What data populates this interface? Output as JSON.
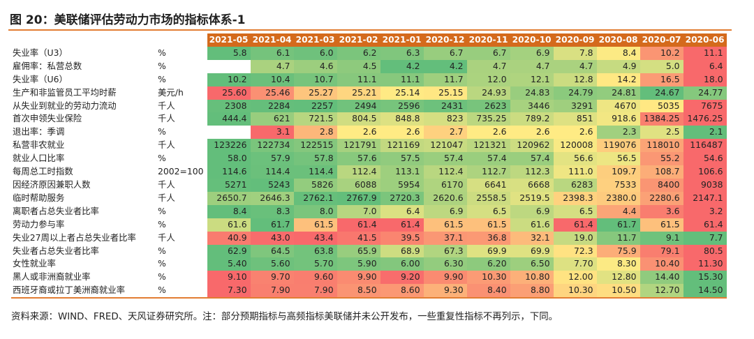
{
  "title": "图 20：美联储评估劳动力市场的指标体系-1",
  "source": "资料来源：WIND、FRED、天风证券研究所。注：部分预期指标与高频指标美联储并未公开发布，一些重复性指标不再列示，下同。",
  "colors": {
    "header_bg": "#d46a1c",
    "rule": "#e27d32",
    "scale_low": "#f8696b",
    "scale_mid": "#ffeb84",
    "scale_high": "#63be7b"
  },
  "table": {
    "columns": [
      "2021-05",
      "2021-04",
      "2021-03",
      "2021-02",
      "2021-01",
      "2020-12",
      "2020-11",
      "2020-10",
      "2020-09",
      "2020-08",
      "2020-07",
      "2020-06"
    ],
    "rows": [
      {
        "name": "失业率（U3）",
        "unit": "%",
        "values": [
          "5.8",
          "6.1",
          "6.0",
          "6.2",
          "6.3",
          "6.7",
          "6.7",
          "6.9",
          "7.8",
          "8.4",
          "10.2",
          "11.1"
        ],
        "good": "low"
      },
      {
        "name": "雇佣率：私营总数",
        "unit": "%",
        "values": [
          "",
          "4.7",
          "4.6",
          "4.5",
          "4.2",
          "4.2",
          "4.7",
          "4.7",
          "4.7",
          "4.9",
          "5.0",
          "6.4"
        ],
        "good": "low"
      },
      {
        "name": "失业率（U6）",
        "unit": "%",
        "values": [
          "10.2",
          "10.4",
          "10.7",
          "11.1",
          "11.1",
          "11.7",
          "12.0",
          "12.1",
          "12.8",
          "14.2",
          "16.5",
          "18.0"
        ],
        "good": "low"
      },
      {
        "name": "生产和非监管员工平均时薪",
        "unit": "美元/h",
        "values": [
          "25.60",
          "25.46",
          "25.27",
          "25.21",
          "25.14",
          "25.15",
          "24.93",
          "24.83",
          "24.79",
          "24.81",
          "24.67",
          "24.77"
        ],
        "good": "low"
      },
      {
        "name": "从失业到就业的劳动力流动",
        "unit": "千人",
        "values": [
          "2308",
          "2284",
          "2257",
          "2494",
          "2596",
          "2431",
          "2623",
          "3446",
          "3291",
          "4670",
          "5035",
          "7675"
        ],
        "good": "low"
      },
      {
        "name": "首次申领失业保险",
        "unit": "千人",
        "values": [
          "444.4",
          "621",
          "721.5",
          "804.5",
          "848.8",
          "823",
          "735.25",
          "789.2",
          "851",
          "918.6",
          "1384.25",
          "1476.25"
        ],
        "good": "low"
      },
      {
        "name": "退出率：季调",
        "unit": "%",
        "values": [
          "",
          "3.1",
          "2.8",
          "2.6",
          "2.6",
          "2.7",
          "2.6",
          "2.6",
          "2.6",
          "2.3",
          "2.5",
          "2.1"
        ],
        "good": "low"
      },
      {
        "name": "私营非农就业",
        "unit": "千人",
        "values": [
          "123226",
          "122734",
          "122515",
          "121791",
          "121169",
          "121047",
          "121321",
          "120962",
          "120008",
          "119076",
          "118010",
          "116487"
        ],
        "good": "high"
      },
      {
        "name": "就业人口比率",
        "unit": "%",
        "values": [
          "58.0",
          "57.9",
          "57.8",
          "57.6",
          "57.5",
          "57.4",
          "57.4",
          "57.4",
          "56.6",
          "56.5",
          "55.2",
          "54.6"
        ],
        "good": "high"
      },
      {
        "name": "每周总工时指数",
        "unit": "2002=100",
        "values": [
          "114.6",
          "114.4",
          "114.4",
          "112.4",
          "113.1",
          "112.4",
          "112.7",
          "112.3",
          "111.0",
          "109.7",
          "108.7",
          "106.6"
        ],
        "good": "high"
      },
      {
        "name": "因经济原因兼职人数",
        "unit": "千人",
        "values": [
          "5271",
          "5243",
          "5826",
          "6088",
          "5954",
          "6170",
          "6641",
          "6668",
          "6283",
          "7533",
          "8400",
          "9038"
        ],
        "good": "low"
      },
      {
        "name": "临时帮助服务",
        "unit": "千人",
        "values": [
          "2650.7",
          "2646.3",
          "2762.1",
          "2767.9",
          "2720.3",
          "2620.6",
          "2558.5",
          "2519.5",
          "2398.3",
          "2380.0",
          "2280.6",
          "2147.1"
        ],
        "good": "high"
      },
      {
        "name": "离职者占总失业者比率",
        "unit": "%",
        "values": [
          "8.4",
          "8.3",
          "8.0",
          "7.0",
          "6.4",
          "6.9",
          "6.5",
          "6.9",
          "6.5",
          "4.4",
          "3.6",
          "3.2"
        ],
        "good": "high"
      },
      {
        "name": "劳动力参与率",
        "unit": "%",
        "values": [
          "61.6",
          "61.7",
          "61.5",
          "61.4",
          "61.4",
          "61.5",
          "61.5",
          "61.6",
          "61.4",
          "61.7",
          "61.5",
          "61.4"
        ],
        "good": "high"
      },
      {
        "name": "失业27周以上者占总失业者比率",
        "unit": "千人",
        "values": [
          "40.9",
          "43.0",
          "43.4",
          "41.5",
          "39.5",
          "37.1",
          "36.8",
          "32.1",
          "19.0",
          "11.7",
          "9.1",
          "7.7"
        ],
        "good": "low"
      },
      {
        "name": "失业者占总失业者比率",
        "unit": "%",
        "values": [
          "62.9",
          "64.5",
          "63.8",
          "65.9",
          "68.9",
          "67.3",
          "69.9",
          "69.9",
          "72.3",
          "75.9",
          "79.1",
          "80.5"
        ],
        "good": "low"
      },
      {
        "name": "女性就业率",
        "unit": "%",
        "values": [
          "5.40",
          "5.60",
          "5.70",
          "5.90",
          "6.00",
          "6.30",
          "6.20",
          "6.50",
          "7.70",
          "8.30",
          "10.40",
          "11.30"
        ],
        "good": "low"
      },
      {
        "name": "黑人或非洲裔就业率",
        "unit": "%",
        "values": [
          "9.10",
          "9.70",
          "9.60",
          "9.90",
          "9.20",
          "9.90",
          "10.30",
          "10.80",
          "12.00",
          "12.80",
          "14.40",
          "15.30"
        ],
        "good": "high"
      },
      {
        "name": "西班牙裔或拉丁美洲裔就业率",
        "unit": "%",
        "values": [
          "7.30",
          "7.90",
          "7.90",
          "8.50",
          "8.60",
          "9.30",
          "8.40",
          "8.80",
          "10.30",
          "10.50",
          "12.70",
          "14.50"
        ],
        "good": "high"
      }
    ]
  }
}
